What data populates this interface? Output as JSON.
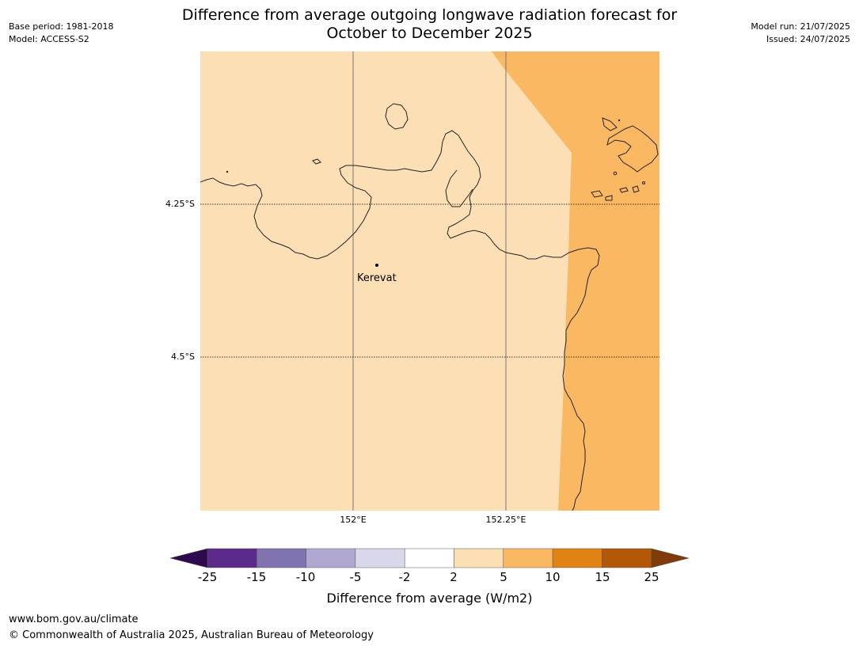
{
  "header": {
    "title_line1": "Difference from average outgoing longwave radiation forecast for",
    "title_line2": "October to December 2025",
    "base_period": "Base period: 1981-2018",
    "model": "Model: ACCESS-S2",
    "model_run": "Model run: 21/07/2025",
    "issued": "Issued: 24/07/2025"
  },
  "map": {
    "place_label": "Kerevat",
    "lat_labels": [
      "4.25°S",
      "4.5°S"
    ],
    "lon_labels": [
      "152°E",
      "152.25°E"
    ],
    "fill_colors": {
      "band_2_5": "#fddfb5",
      "band_5_10": "#fbb862"
    }
  },
  "colorbar": {
    "title": "Difference from average (W/m2)",
    "ticks": [
      "-25",
      "-15",
      "-10",
      "-5",
      "-2",
      "2",
      "5",
      "10",
      "15",
      "25"
    ],
    "colors": [
      "#2d0a4e",
      "#5b2a8a",
      "#8073b0",
      "#b1a8d2",
      "#d9d8ea",
      "#ffffff",
      "#fddfb5",
      "#fbb862",
      "#e08214",
      "#b35806",
      "#7f3b08"
    ]
  },
  "footer": {
    "url": "www.bom.gov.au/climate",
    "copyright": "© Commonwealth of Australia 2025, Australian Bureau of Meteorology"
  }
}
